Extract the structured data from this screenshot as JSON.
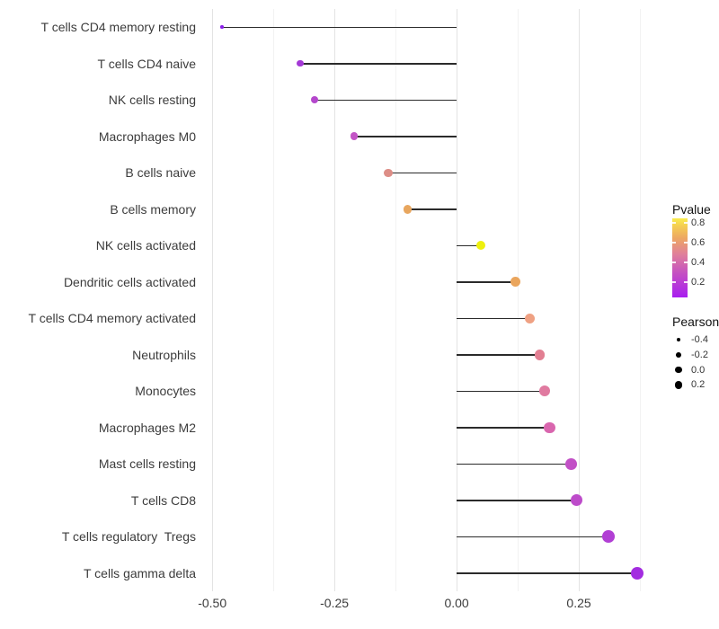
{
  "chart_data": {
    "type": "lollipop",
    "orientation": "horizontal",
    "title": "",
    "xlabel": "",
    "ylabel": "",
    "baseline": 0,
    "xlim": [
      -0.515,
      0.386
    ],
    "x_ticks": {
      "values": [
        -0.5,
        -0.25,
        0,
        0.25
      ],
      "labels": [
        "-0.50",
        "-0.25",
        "0.00",
        "0.25"
      ]
    },
    "x_minor_ticks": [
      -0.375,
      -0.125,
      0.125,
      0.375
    ],
    "grid": {
      "major_color": "#e3e3e3",
      "minor_color": "#f2f2f2",
      "horizontal_lines": false
    },
    "stick_color": "#2b2b2b",
    "points": [
      {
        "label": "T cells CD4 memory resting",
        "pearson": -0.48,
        "color": "#8b1fe9",
        "radius": 1.8
      },
      {
        "label": "T cells CD4 naive",
        "pearson": -0.32,
        "color": "#a439d6",
        "radius": 3.6
      },
      {
        "label": "NK cells resting",
        "pearson": -0.29,
        "color": "#b447cc",
        "radius": 4.0
      },
      {
        "label": "Macrophages M0",
        "pearson": -0.21,
        "color": "#c355c6",
        "radius": 4.3
      },
      {
        "label": "B cells naive",
        "pearson": -0.14,
        "color": "#dd8e87",
        "radius": 4.6
      },
      {
        "label": "B cells memory",
        "pearson": -0.1,
        "color": "#e8a65e",
        "radius": 4.8
      },
      {
        "label": "NK cells activated",
        "pearson": 0.05,
        "color": "#eef00d",
        "radius": 5.2
      },
      {
        "label": "Dendritic cells activated",
        "pearson": 0.12,
        "color": "#eaa55c",
        "radius": 5.6
      },
      {
        "label": "T cells CD4 memory activated",
        "pearson": 0.15,
        "color": "#efa183",
        "radius": 5.7
      },
      {
        "label": "Neutrophils",
        "pearson": 0.17,
        "color": "#e27f92",
        "radius": 5.9
      },
      {
        "label": "Monocytes",
        "pearson": 0.18,
        "color": "#e07aa0",
        "radius": 6.0
      },
      {
        "label": "Macrophages M2",
        "pearson": 0.19,
        "color": "#d966ae",
        "radius": 6.2
      },
      {
        "label": "Mast cells resting",
        "pearson": 0.235,
        "color": "#c250c6",
        "radius": 6.4
      },
      {
        "label": "T cells CD8",
        "pearson": 0.245,
        "color": "#bd4bca",
        "radius": 6.5
      },
      {
        "label": "T cells regulatory  Tregs",
        "pearson": 0.31,
        "color": "#b13fd4",
        "radius": 6.9
      },
      {
        "label": "T cells gamma delta",
        "pearson": 0.37,
        "color": "#a32ce0",
        "radius": 7.2
      }
    ]
  },
  "legends": {
    "pvalue": {
      "title": "Pvalue",
      "tick_labels": [
        "0.8",
        "0.6",
        "0.4",
        "0.2"
      ],
      "tick_values": [
        0.8,
        0.6,
        0.4,
        0.2
      ],
      "bar_value_range": [
        0.045,
        0.845
      ],
      "gradient": [
        {
          "stop": 0,
          "color": "#a81ef0"
        },
        {
          "stop": 0.3,
          "color": "#c44fc3"
        },
        {
          "stop": 0.55,
          "color": "#e0809a"
        },
        {
          "stop": 0.75,
          "color": "#eda763"
        },
        {
          "stop": 0.9,
          "color": "#f4cd52"
        },
        {
          "stop": 1,
          "color": "#f9ec4d"
        }
      ]
    },
    "pearson": {
      "title": "Pearson",
      "dot_color": "#000000",
      "entries": [
        {
          "label": "-0.4",
          "r": 2.2
        },
        {
          "label": "-0.2",
          "r": 2.9
        },
        {
          "label": "0.0",
          "r": 3.7
        },
        {
          "label": "0.2",
          "r": 4.3
        }
      ]
    }
  }
}
